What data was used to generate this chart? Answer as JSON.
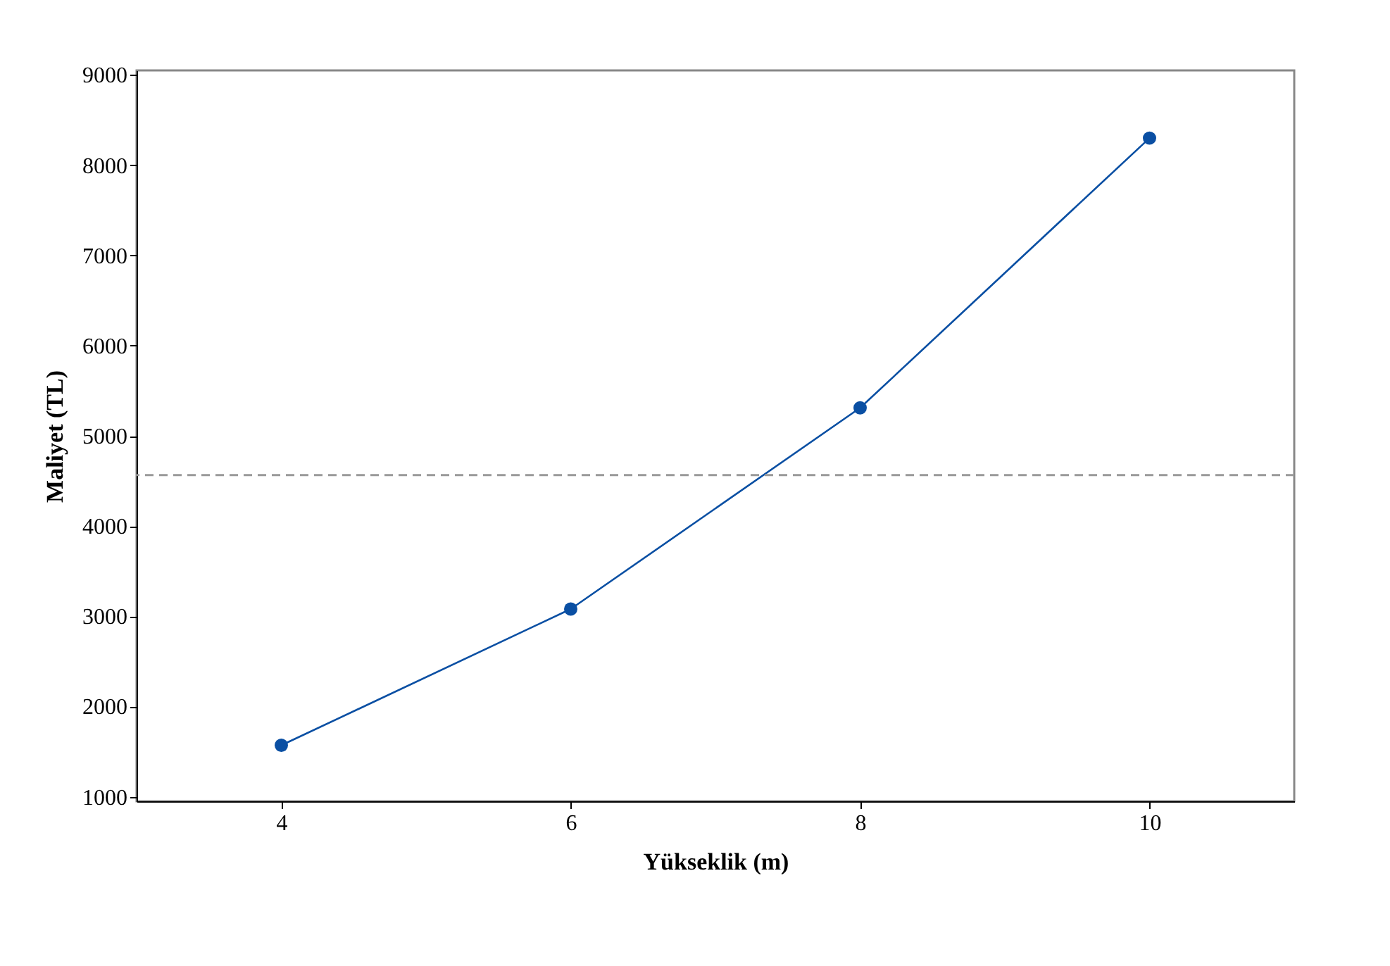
{
  "chart_data": {
    "type": "line",
    "xlabel": "Yükseklik (m)",
    "ylabel": "Maliyet (TL)",
    "x": [
      4,
      6,
      8,
      10
    ],
    "series": [
      {
        "color": "#0a4fa3",
        "values": [
          1570,
          3080,
          5310,
          8300
        ]
      }
    ],
    "xlim": [
      3,
      11
    ],
    "xticks": [
      4,
      6,
      8,
      10
    ],
    "ylim": [
      950,
      9050
    ],
    "yticks": [
      1000,
      2000,
      3000,
      4000,
      5000,
      6000,
      7000,
      8000,
      9000
    ],
    "ref_lines": [
      {
        "axis": "y",
        "value": 4565,
        "color": "#999999",
        "line_style": "dashed"
      }
    ],
    "marker": "circle",
    "line_style": "solid"
  }
}
